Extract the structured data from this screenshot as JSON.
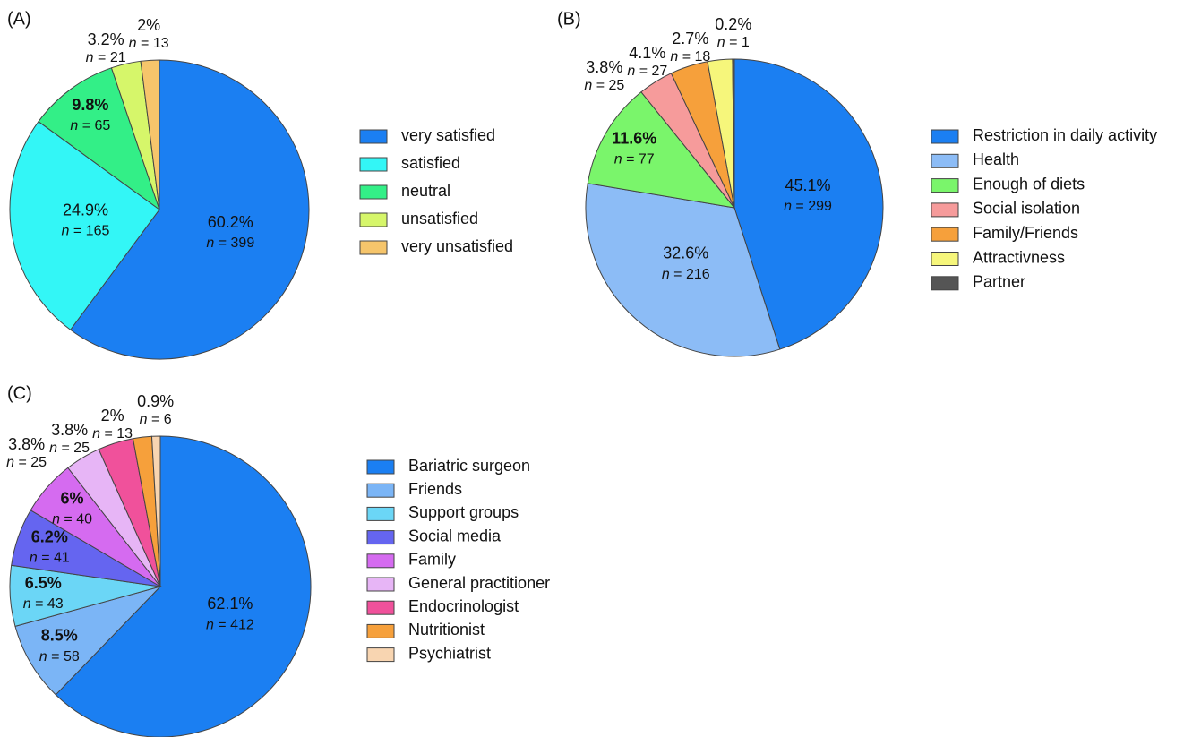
{
  "chart_data": [
    {
      "type": "pie",
      "title": "(A)",
      "categories": [
        "very satisfied",
        "satisfied",
        "neutral",
        "unsatisfied",
        "very unsatisfied"
      ],
      "values": [
        60.2,
        24.9,
        9.8,
        3.2,
        2
      ],
      "value_labels": [
        "60.2%",
        "24.9%",
        "9.8%",
        "3.2%",
        "2%"
      ],
      "counts": [
        399,
        165,
        65,
        21,
        13
      ],
      "count_labels": [
        "n = 399",
        "n = 165",
        "n = 65",
        "n = 21",
        "n = 13"
      ],
      "colors": [
        "#1b7ff2",
        "#33f6f6",
        "#33ef87",
        "#d6f66a",
        "#f6c56b"
      ]
    },
    {
      "type": "pie",
      "title": "(B)",
      "categories": [
        "Restriction in daily activity",
        "Health",
        "Enough of diets",
        "Social isolation",
        "Family/Friends",
        "Attractivness",
        "Partner"
      ],
      "values": [
        45.1,
        32.6,
        11.6,
        3.8,
        4.1,
        2.7,
        0.2
      ],
      "value_labels": [
        "45.1%",
        "32.6%",
        "11.6%",
        "3.8%",
        "4.1%",
        "2.7%",
        "0.2%"
      ],
      "counts": [
        299,
        216,
        77,
        25,
        27,
        18,
        1
      ],
      "count_labels": [
        "n = 299",
        "n = 216",
        "n = 77",
        "n = 25",
        "n = 27",
        "n = 18",
        "n = 1"
      ],
      "colors": [
        "#1b7ff2",
        "#8cbcf6",
        "#7af56b",
        "#f69b9b",
        "#f6a03b",
        "#f6f67b",
        "#555555"
      ]
    },
    {
      "type": "pie",
      "title": "(C)",
      "categories": [
        "Bariatric surgeon",
        "Friends",
        "Support groups",
        "Social media",
        "Family",
        "General practitioner",
        "Endocrinologist",
        "Nutritionist",
        "Psychiatrist"
      ],
      "values": [
        62.1,
        8.5,
        6.5,
        6.2,
        6,
        3.8,
        3.8,
        2,
        0.9
      ],
      "value_labels": [
        "62.1%",
        "8.5%",
        "6.5%",
        "6.2%",
        "6%",
        "3.8%",
        "3.8%",
        "2%",
        "0.9%"
      ],
      "counts": [
        412,
        58,
        43,
        41,
        40,
        25,
        25,
        13,
        6
      ],
      "count_labels": [
        "n = 412",
        "n = 58",
        "n = 43",
        "n = 41",
        "n = 40",
        "n = 25",
        "n = 25",
        "n = 13",
        "n = 6"
      ],
      "colors": [
        "#1b7ff2",
        "#7bb5f6",
        "#6bd6f6",
        "#6565f0",
        "#d56bf0",
        "#e7b5f6",
        "#f0519b",
        "#f6a03b",
        "#f8d5b1"
      ]
    }
  ]
}
